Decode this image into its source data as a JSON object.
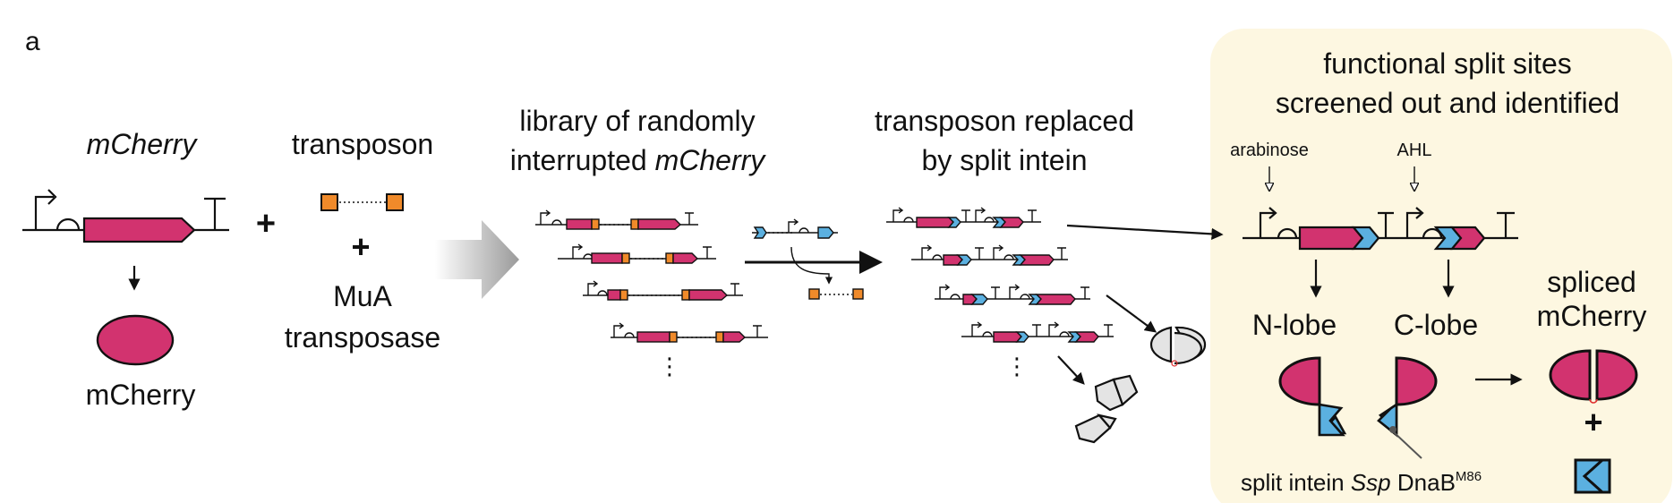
{
  "panel_label": "a",
  "colors": {
    "mcherry": "#d2336f",
    "intein": "#5bb0e0",
    "transposon_end": "#f08a2a",
    "panel_bg": "#fdf7e1",
    "text": "#111111"
  },
  "steps": {
    "gene": {
      "title": "mCherry",
      "product": "mCherry"
    },
    "transposon": {
      "title": "transposon",
      "plus": "+",
      "enzyme_line1": "MuA",
      "enzyme_line2": "transposase"
    },
    "library": {
      "line1": "library of randomly",
      "line2_plain": "interrupted ",
      "line2_italic": "mCherry",
      "more": "⋮"
    },
    "replaced": {
      "line1": "transposon replaced",
      "line2": "by split intein",
      "more": "⋮"
    }
  },
  "screen_panel": {
    "title_line1": "functional split sites",
    "title_line2": "screened out and identified",
    "inducer_left": "arabinose",
    "inducer_right": "AHL",
    "n_lobe": "N-lobe",
    "c_lobe": "C-lobe",
    "spliced_line1": "spliced",
    "spliced_line2": "mCherry",
    "plus": "+",
    "intein_label_prefix": "split intein ",
    "intein_label_species": "Ssp",
    "intein_label_name": " DnaB",
    "intein_label_sup": "M86"
  },
  "icons": {
    "promoter": "promoter-arrow-icon",
    "terminator": "terminator-t-icon",
    "rbs": "rbs-half-circle-icon",
    "process_arrow": "big-gray-arrow-icon",
    "protein": "mcherry-protein-ellipse-icon"
  }
}
